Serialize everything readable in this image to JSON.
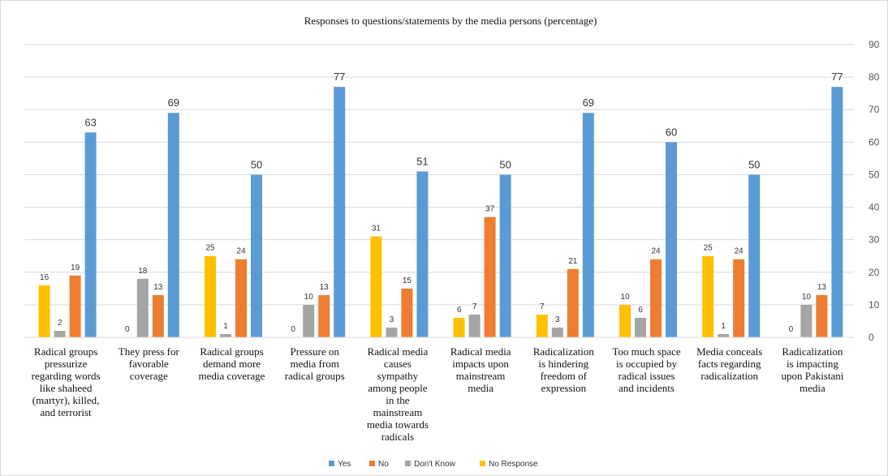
{
  "chart_data": {
    "type": "bar",
    "title": "Responses to questions/statements by the media persons (percentage)",
    "ylim": [
      0,
      90
    ],
    "yticks": [
      0,
      10,
      20,
      30,
      40,
      50,
      60,
      70,
      80,
      90
    ],
    "grid": true,
    "legend_position": "bottom",
    "categories": [
      [
        "Radical groups",
        "pressurize",
        "regarding words",
        "like shaheed",
        "(martyr), killed,",
        "and terrorist"
      ],
      [
        "They press for",
        "favorable",
        "coverage"
      ],
      [
        "Radical groups",
        "demand more",
        "media coverage"
      ],
      [
        "Pressure on",
        "media from",
        "radical groups"
      ],
      [
        "Radical media",
        "causes",
        "sympathy",
        "among people",
        "in the",
        "mainstream",
        "media towards",
        "radicals"
      ],
      [
        "Radical media",
        "impacts upon",
        "mainstream",
        "media"
      ],
      [
        "Radicalization",
        "is hindering",
        "freedom of",
        "expression"
      ],
      [
        "Too much space",
        "is occupied by",
        "radical issues",
        "and incidents"
      ],
      [
        "Media conceals",
        "facts regarding",
        "radicalization"
      ],
      [
        "Radicalization",
        "is impacting",
        "upon Pakistani",
        "media"
      ]
    ],
    "series": [
      {
        "name": "No Response",
        "color": "#FFC000",
        "values": [
          16,
          0,
          25,
          0,
          31,
          6,
          7,
          10,
          25,
          0
        ]
      },
      {
        "name": "Don't Know",
        "color": "#A5A5A5",
        "values": [
          2,
          18,
          1,
          10,
          3,
          7,
          3,
          6,
          1,
          10
        ]
      },
      {
        "name": "No",
        "color": "#ED7D31",
        "values": [
          19,
          13,
          24,
          13,
          15,
          37,
          21,
          24,
          24,
          13
        ]
      },
      {
        "name": "Yes",
        "color": "#5B9BD5",
        "values": [
          63,
          69,
          50,
          77,
          51,
          50,
          69,
          60,
          50,
          77
        ]
      }
    ],
    "legend_order": [
      "Yes",
      "No",
      "Don't Know",
      "No Response"
    ]
  }
}
